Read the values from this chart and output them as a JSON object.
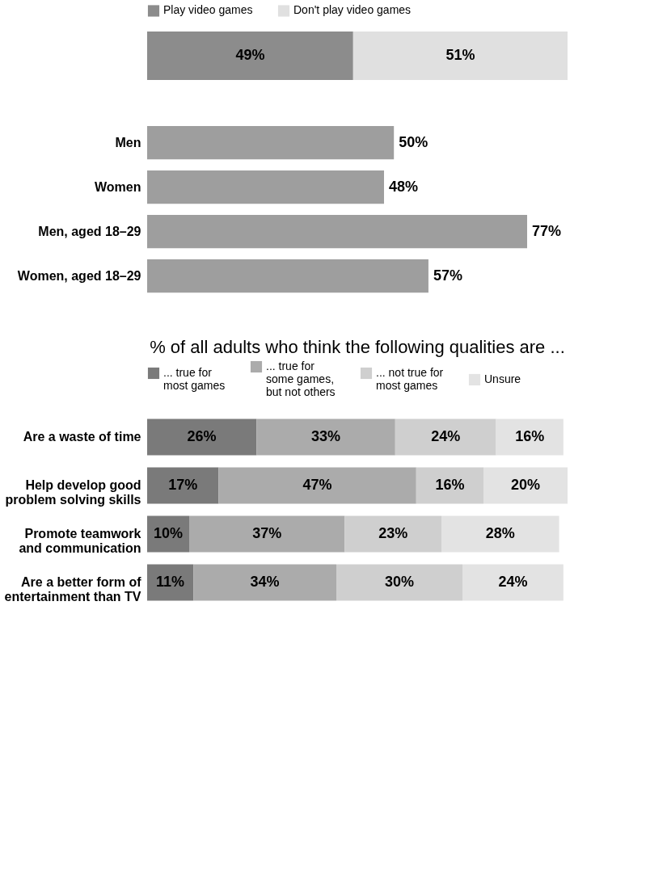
{
  "chart_data": [
    {
      "type": "bar",
      "orientation": "horizontal",
      "stacked": true,
      "legend": "top",
      "categories": [
        null
      ],
      "series": [
        {
          "name": "Play video games",
          "color": "#8c8c8c",
          "values": [
            49
          ],
          "value_labels": [
            "49%"
          ]
        },
        {
          "name": "Don't play video games",
          "color": "#e0e0e0",
          "values": [
            51
          ],
          "value_labels": [
            "51%"
          ]
        }
      ]
    },
    {
      "type": "bar",
      "orientation": "horizontal",
      "categories": [
        "Men",
        "Women",
        "Men, aged 18–29",
        "Women, aged 18–29"
      ],
      "series": [
        {
          "color": "#9e9e9e",
          "values": [
            50,
            48,
            77,
            57
          ],
          "value_labels": [
            "50%",
            "48%",
            "77%",
            "57%"
          ]
        }
      ]
    },
    {
      "type": "bar",
      "orientation": "horizontal",
      "stacked": true,
      "legend": "top",
      "title": "% of all adults who think the following qualities are ...",
      "categories": [
        "Are a waste of time",
        "Help develop good\nproblem solving skills",
        "Promote teamwork\nand communication",
        "Are a better form of\nentertainment than TV"
      ],
      "series": [
        {
          "name": "... true for\nmost games",
          "color": "#7a7a7a",
          "values": [
            26,
            17,
            10,
            11
          ],
          "value_labels": [
            "26%",
            "17%",
            "10%",
            "11%"
          ]
        },
        {
          "name": "... true for\nsome games,\nbut not others",
          "color": "#ababab",
          "values": [
            33,
            47,
            37,
            34
          ],
          "value_labels": [
            "33%",
            "47%",
            "37%",
            "34%"
          ]
        },
        {
          "name": "... not true for\nmost games",
          "color": "#cfcfcf",
          "values": [
            24,
            16,
            23,
            30
          ],
          "value_labels": [
            "24%",
            "16%",
            "23%",
            "30%"
          ]
        },
        {
          "name": "Unsure",
          "color": "#e3e3e3",
          "values": [
            16,
            20,
            28,
            24
          ],
          "value_labels": [
            "16%",
            "20%",
            "28%",
            "24%"
          ]
        }
      ]
    }
  ]
}
